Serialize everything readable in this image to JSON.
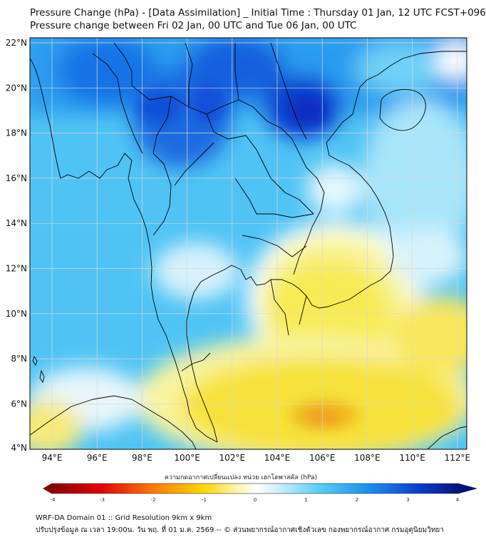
{
  "title_line1": "Pressure Change (hPa) - [Data Assimilation] _ Initial Time : Thursday 01 Jan, 12 UTC FCST+096",
  "title_line2": "Pressure change between Fri 02 Jan, 00 UTC and Tue 06 Jan, 00 UTC",
  "lat_labels": [
    "22°N",
    "20°N",
    "18°N",
    "16°N",
    "14°N",
    "12°N",
    "10°N",
    "8°N",
    "6°N",
    "4°N"
  ],
  "lon_labels": [
    "94°E",
    "96°E",
    "98°E",
    "100°E",
    "102°E",
    "104°E",
    "106°E",
    "108°E",
    "110°E",
    "112°E"
  ],
  "colorbar": {
    "title": "ความกดอากาศเปลี่ยนแปลง หน่วย เฮกโตพาสคัล (hPa)",
    "ticks": [
      "-4",
      "-3",
      "-2",
      "-1",
      "0",
      "1",
      "2",
      "3",
      "4"
    ],
    "min": -4,
    "max": 4
  },
  "colors": {
    "strong_negative": "#8b0000",
    "moderate_negative": "#ff4500",
    "weak_negative": "#f4e200",
    "zero": "#ffffff",
    "weak_positive": "#9be4f8",
    "moderate_positive": "#1ea2ee",
    "strong_positive": "#05127a",
    "coastline": "#000000",
    "grid": "#d8d8d8"
  },
  "footer_line1": "WRF-DA Domain 01 :: Grid Resolution 9km x 9km",
  "footer_line2": "ปรับปรุงข้อมูล ณ เวลา 19:00น. วัน พฤ. ที่ 01 ม.ค. 2569 -- © ส่วนพยากรณ์อากาศเชิงตัวเลข กองพยากรณ์อากาศ กรมอุตุนิยมวิทยา"
}
